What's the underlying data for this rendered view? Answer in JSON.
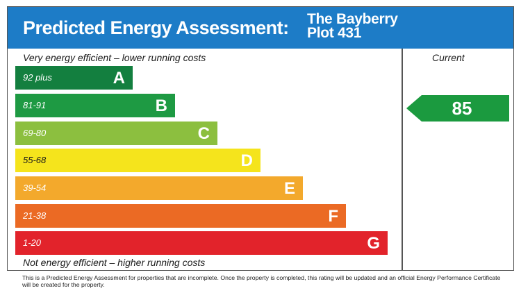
{
  "header": {
    "title": "Predicted Energy Assessment:",
    "property_line1": "The Bayberry",
    "property_line2": "Plot 431"
  },
  "top_caption": "Very energy efficient – lower running costs",
  "bottom_caption": "Not energy efficient – higher running costs",
  "current_heading": "Current",
  "current_rating": "85",
  "current_color": "#1b9a3f",
  "bands": [
    {
      "range": "92 plus",
      "letter": "A",
      "color": "#137f3f"
    },
    {
      "range": "81-91",
      "letter": "B",
      "color": "#1e9a43"
    },
    {
      "range": "69-80",
      "letter": "C",
      "color": "#8cbf3f"
    },
    {
      "range": "55-68",
      "letter": "D",
      "color": "#f5e41c"
    },
    {
      "range": "39-54",
      "letter": "E",
      "color": "#f3a92c"
    },
    {
      "range": "21-38",
      "letter": "F",
      "color": "#eb6a24"
    },
    {
      "range": "1-20",
      "letter": "G",
      "color": "#e2232b"
    }
  ],
  "footer_note": "This is a Predicted Energy Assessment for properties that are incomplete. Once the property is completed, this rating will be updated and an official Energy Performance Certificate will be created for the property."
}
